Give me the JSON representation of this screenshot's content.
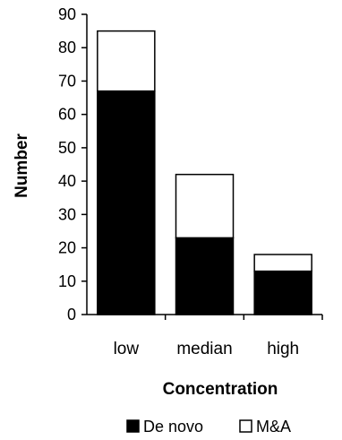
{
  "chart_data": {
    "type": "bar",
    "stacked": true,
    "categories": [
      "low",
      "median",
      "high"
    ],
    "series": [
      {
        "name": "De novo",
        "values": [
          67,
          23,
          13
        ],
        "color": "#000000"
      },
      {
        "name": "M&A",
        "values": [
          18,
          19,
          5
        ],
        "color": "#ffffff"
      }
    ],
    "xlabel": "Concentration",
    "ylabel": "Number",
    "ylim": [
      0,
      90
    ],
    "yticks": [
      0,
      10,
      20,
      30,
      40,
      50,
      60,
      70,
      80,
      90
    ],
    "grid": false,
    "legend_position": "bottom"
  }
}
